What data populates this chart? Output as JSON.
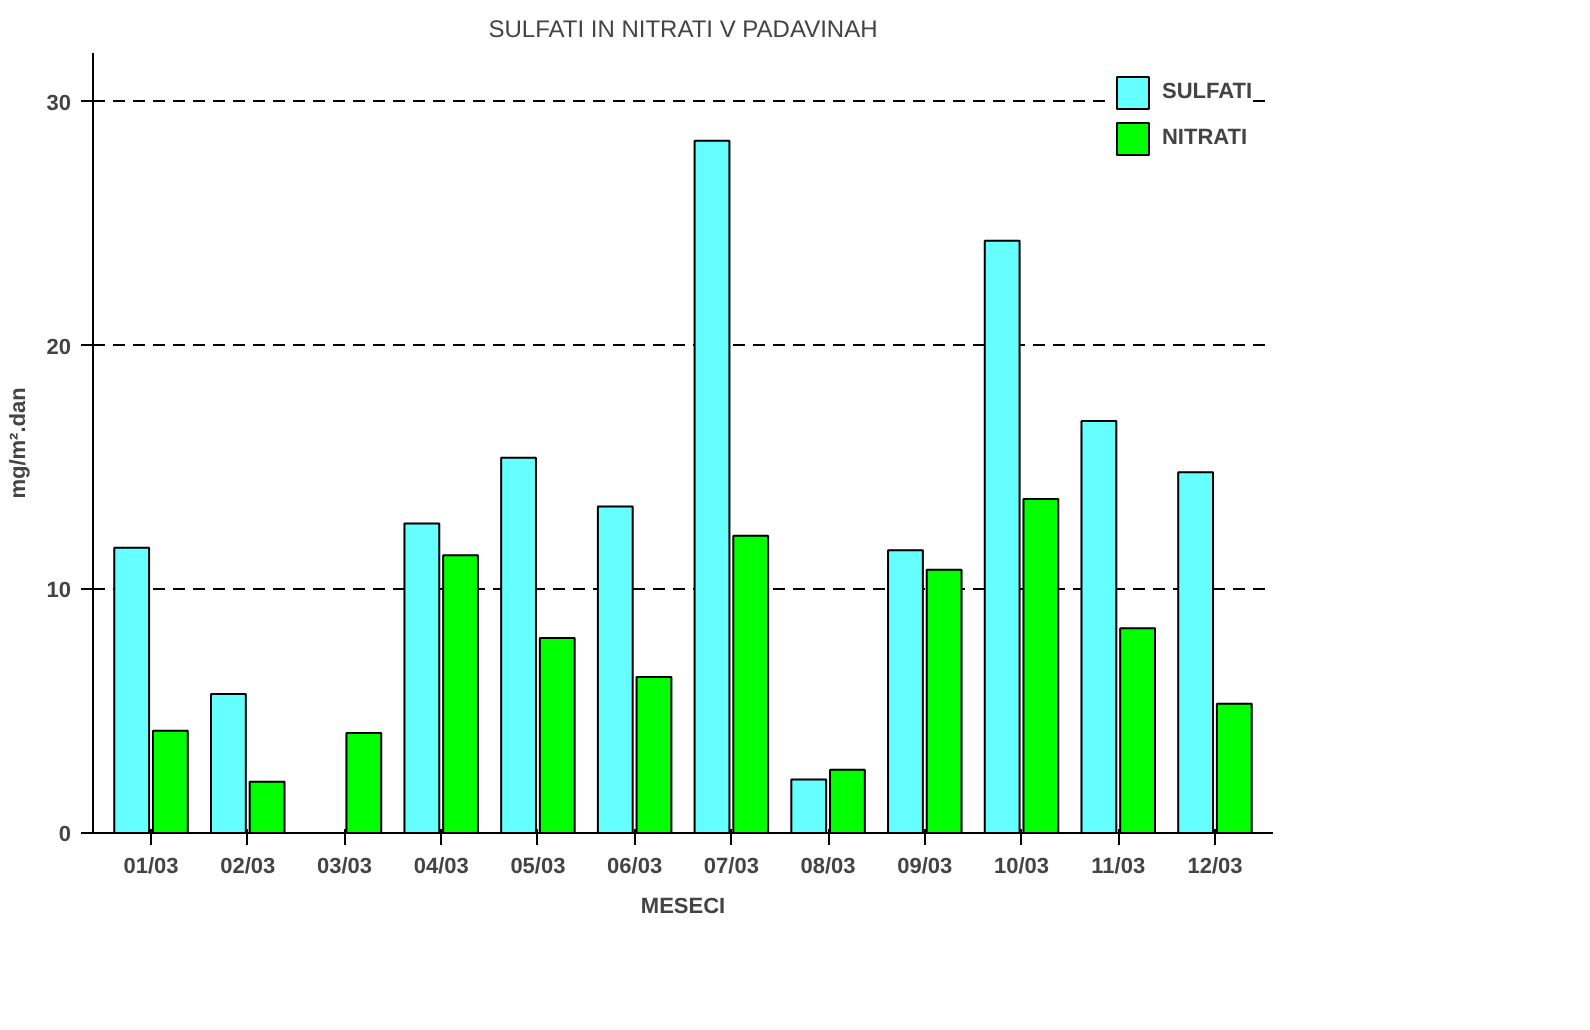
{
  "chart_data": {
    "type": "bar",
    "subtitle": "SULFATI IN NITRATI V PADAVINAH",
    "xlabel": "MESECI",
    "ylabel": "mg/m².dan",
    "categories": [
      "01/03",
      "02/03",
      "03/03",
      "04/03",
      "05/03",
      "06/03",
      "07/03",
      "08/03",
      "09/03",
      "10/03",
      "11/03",
      "12/03"
    ],
    "series": [
      {
        "name": "SULFATI",
        "color": "#66ffff",
        "values": [
          11.7,
          5.7,
          null,
          12.7,
          15.4,
          13.4,
          28.4,
          2.2,
          11.6,
          24.3,
          16.9,
          14.8
        ]
      },
      {
        "name": "NITRATI",
        "color": "#00ff00",
        "values": [
          4.2,
          2.1,
          4.1,
          11.4,
          8.0,
          6.4,
          12.2,
          2.6,
          10.8,
          13.7,
          8.4,
          5.3
        ]
      }
    ],
    "ylim": [
      0,
      32
    ],
    "yticks": [
      0,
      10,
      20,
      30
    ],
    "grid": "y",
    "legend": "top right"
  }
}
